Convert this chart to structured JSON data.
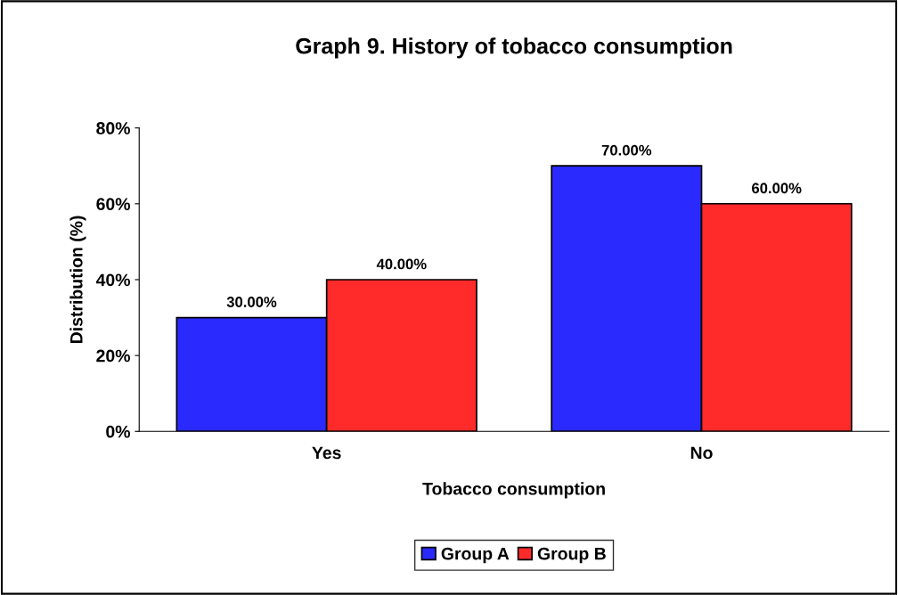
{
  "chart_data": {
    "type": "bar",
    "title": "Graph 9. History of tobacco consumption",
    "xlabel": "Tobacco consumption",
    "ylabel": "Distribution (%)",
    "categories": [
      "Yes",
      "No"
    ],
    "series": [
      {
        "name": "Group A",
        "color": "#2a2aff",
        "values": [
          30,
          70
        ],
        "value_labels": [
          "30.00%",
          "70.00%"
        ]
      },
      {
        "name": "Group B",
        "color": "#ff2a2a",
        "values": [
          40,
          60
        ],
        "value_labels": [
          "40.00%",
          "60.00%"
        ]
      }
    ],
    "ylim": [
      0,
      80
    ],
    "yticks": [
      {
        "value": 0,
        "label": "0%"
      },
      {
        "value": 20,
        "label": "20%"
      },
      {
        "value": 40,
        "label": "40%"
      },
      {
        "value": 60,
        "label": "60%"
      },
      {
        "value": 80,
        "label": "80%"
      }
    ],
    "grid": false,
    "legend": "bottom"
  }
}
